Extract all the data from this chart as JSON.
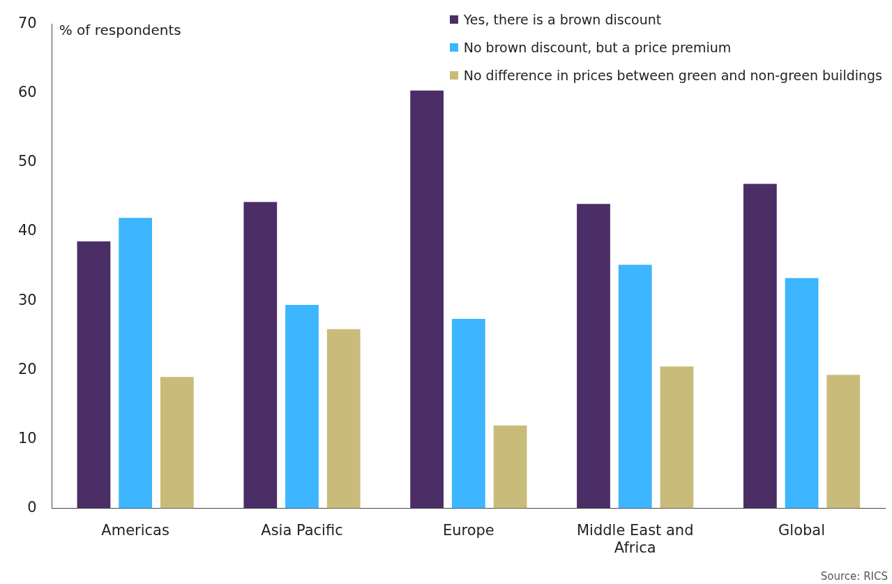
{
  "chart_data": {
    "type": "bar",
    "ylabel": "% of respondents",
    "categories": [
      "Americas",
      "Asia Pacific",
      "Europe",
      "Middle East and Africa",
      "Global"
    ],
    "series": [
      {
        "name": "Yes, there is a brown discount",
        "color": "#4b2e66",
        "values": [
          38.6,
          44.3,
          60.4,
          44.0,
          46.9
        ]
      },
      {
        "name": "No brown discount, but a price premium",
        "color": "#3db5ff",
        "values": [
          42.0,
          29.4,
          27.4,
          35.2,
          33.3
        ]
      },
      {
        "name": "No difference in prices between green and non-green buildings",
        "color": "#c9bc7a",
        "values": [
          19.0,
          25.9,
          12.0,
          20.5,
          19.3
        ]
      }
    ],
    "ylim": [
      0,
      70
    ],
    "yticks": [
      0,
      10,
      20,
      30,
      40,
      50,
      60,
      70
    ],
    "grid": false,
    "legend": "top right",
    "annotations": [
      "Source: RICS"
    ]
  }
}
